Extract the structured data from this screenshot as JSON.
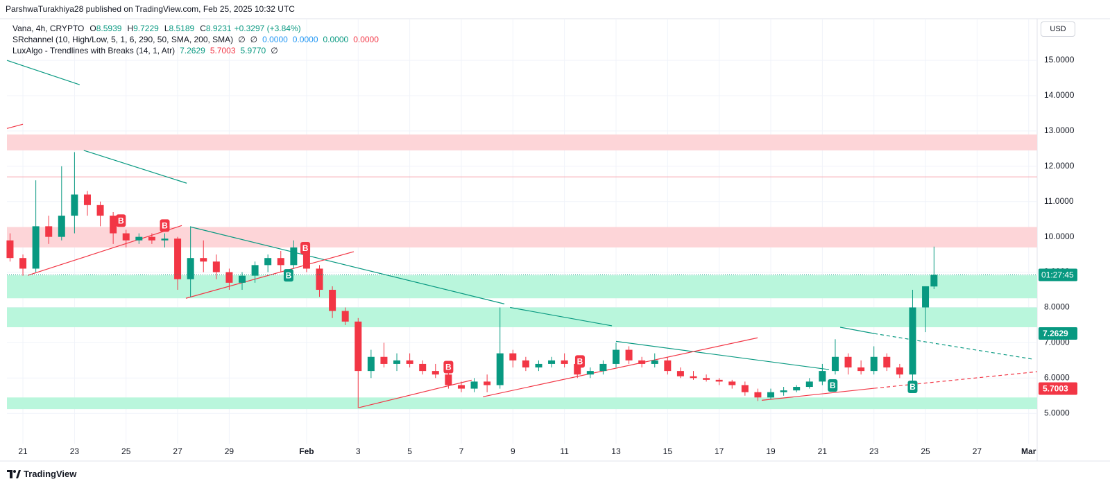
{
  "header": "ParshwaTurakhiya28 published on TradingView.com, Feb 25, 2025 10:32 UTC",
  "footer": "TradingView",
  "chart_data": {
    "type": "candlestick",
    "title": "Vana, 4h, CRYPTO",
    "currency": "USD",
    "ohlc_labels": [
      "O",
      "H",
      "L",
      "C"
    ],
    "change": "+0.3297 (+3.84%)",
    "indicators": [
      {
        "name": "SRchannel (10, High/Low, 5, 1, 6, 290, 50, SMA, 200, SMA)",
        "items": [
          {
            "text": "∅",
            "color": "#131722"
          },
          {
            "text": "∅",
            "color": "#131722"
          },
          {
            "text": "0.0000",
            "color": "#2196f3"
          },
          {
            "text": "0.0000",
            "color": "#2196f3"
          },
          {
            "text": "0.0000",
            "color": "#089981"
          },
          {
            "text": "0.0000",
            "color": "#f23645"
          }
        ]
      },
      {
        "name": "LuxAlgo - Trendlines with Breaks (14, 1, Atr)",
        "items": [
          {
            "text": "7.2629",
            "color": "#089981"
          },
          {
            "text": "5.7003",
            "color": "#f23645"
          },
          {
            "text": "5.9770",
            "color": "#089981"
          },
          {
            "text": "∅",
            "color": "#131722"
          }
        ]
      }
    ],
    "up_color": "#089981",
    "down_color": "#f23645",
    "x": [
      -0.5,
      0,
      0.5,
      1,
      1.5,
      2,
      2.5,
      3,
      3.5,
      4,
      4.5,
      5,
      5.5,
      6,
      6.5,
      7,
      7.5,
      8,
      8.5,
      9,
      9.5,
      10,
      10.5,
      11,
      11.5,
      12,
      12.5,
      13,
      13.5,
      14,
      14.5,
      15,
      15.5,
      16,
      16.5,
      17,
      17.5,
      18,
      18.5,
      19,
      19.5,
      20,
      20.5,
      21,
      21.5,
      22,
      22.5,
      23,
      23.5,
      24,
      24.5,
      25,
      25.5,
      26,
      26.5,
      27,
      27.5,
      28,
      28.5,
      29,
      29.5,
      30,
      30.5,
      31,
      31.5,
      32,
      32.5,
      33,
      33.5,
      34,
      34.5,
      35,
      35.33
    ],
    "open": [
      9.9,
      9.4,
      9.1,
      10.3,
      10.0,
      10.6,
      11.2,
      10.9,
      10.6,
      10.1,
      9.9,
      10.0,
      9.9,
      9.95,
      8.8,
      9.4,
      9.3,
      9.0,
      8.7,
      8.9,
      9.2,
      9.4,
      9.2,
      9.7,
      9.1,
      8.5,
      7.9,
      7.6,
      6.2,
      6.6,
      6.4,
      6.5,
      6.4,
      6.2,
      6.1,
      5.8,
      5.7,
      5.9,
      5.8,
      6.7,
      6.5,
      6.3,
      6.4,
      6.5,
      6.4,
      6.1,
      6.2,
      6.4,
      6.8,
      6.5,
      6.4,
      6.5,
      6.2,
      6.05,
      6.0,
      5.95,
      5.9,
      5.8,
      5.6,
      5.45,
      5.6,
      5.65,
      5.75,
      5.9,
      6.2,
      6.6,
      6.3,
      6.2,
      6.6,
      6.3,
      6.1,
      8.0,
      8.5939
    ],
    "high": [
      10.1,
      9.5,
      11.6,
      10.6,
      12.0,
      12.4,
      11.3,
      11.0,
      10.7,
      10.2,
      10.1,
      10.1,
      10.1,
      10.0,
      10.3,
      9.9,
      9.5,
      9.1,
      9.0,
      9.3,
      9.5,
      9.6,
      9.9,
      9.8,
      9.2,
      8.6,
      8.0,
      7.7,
      6.8,
      7.0,
      6.7,
      6.7,
      6.5,
      6.4,
      6.2,
      5.9,
      6.0,
      6.1,
      8.0,
      6.8,
      6.6,
      6.5,
      6.6,
      6.7,
      6.5,
      6.3,
      6.5,
      7.0,
      6.9,
      6.6,
      6.7,
      6.6,
      6.3,
      6.2,
      6.1,
      6.0,
      5.95,
      5.9,
      5.7,
      5.7,
      5.75,
      5.8,
      6.0,
      6.4,
      7.1,
      6.7,
      6.5,
      6.9,
      6.7,
      6.4,
      8.5,
      8.6,
      9.7229
    ],
    "low": [
      9.3,
      8.9,
      9.0,
      9.8,
      9.9,
      10.1,
      10.6,
      10.3,
      9.8,
      9.7,
      9.8,
      9.8,
      9.7,
      8.5,
      8.3,
      9.0,
      8.8,
      8.5,
      8.5,
      8.7,
      9.0,
      9.0,
      9.1,
      9.0,
      8.3,
      7.7,
      7.5,
      5.15,
      6.0,
      6.3,
      6.2,
      6.3,
      6.1,
      6.0,
      5.7,
      5.6,
      5.6,
      5.6,
      5.7,
      6.3,
      6.2,
      6.2,
      6.3,
      6.3,
      6.0,
      6.0,
      6.1,
      6.3,
      6.4,
      6.3,
      6.3,
      6.1,
      6.0,
      5.95,
      5.9,
      5.8,
      5.7,
      5.5,
      5.35,
      5.4,
      5.5,
      5.6,
      5.7,
      5.8,
      6.1,
      6.1,
      6.1,
      6.1,
      6.2,
      6.0,
      5.9,
      7.3,
      8.5189
    ],
    "close": [
      9.4,
      9.1,
      10.3,
      10.0,
      10.6,
      11.2,
      10.9,
      10.6,
      10.1,
      9.9,
      10.0,
      9.9,
      9.95,
      8.8,
      9.4,
      9.3,
      9.0,
      8.7,
      8.9,
      9.2,
      9.4,
      9.2,
      9.7,
      9.1,
      8.5,
      7.9,
      7.6,
      6.2,
      6.6,
      6.4,
      6.5,
      6.4,
      6.2,
      6.1,
      5.8,
      5.7,
      5.9,
      5.8,
      6.7,
      6.5,
      6.3,
      6.4,
      6.5,
      6.4,
      6.1,
      6.2,
      6.4,
      6.8,
      6.5,
      6.4,
      6.5,
      6.2,
      6.05,
      6.0,
      5.95,
      5.9,
      5.8,
      5.6,
      5.45,
      5.6,
      5.65,
      5.75,
      5.9,
      6.2,
      6.6,
      6.3,
      6.2,
      6.6,
      6.3,
      6.1,
      8.0,
      8.6,
      8.9231
    ],
    "xlim": [
      -0.62,
      39.33
    ],
    "ylim": [
      4.14,
      16.18
    ],
    "xticks": [
      {
        "value": 0,
        "label": "21"
      },
      {
        "value": 2,
        "label": "23"
      },
      {
        "value": 4,
        "label": "25"
      },
      {
        "value": 6,
        "label": "27"
      },
      {
        "value": 8,
        "label": "29"
      },
      {
        "value": 11,
        "label": "Feb"
      },
      {
        "value": 13,
        "label": "3"
      },
      {
        "value": 15,
        "label": "5"
      },
      {
        "value": 17,
        "label": "7"
      },
      {
        "value": 19,
        "label": "9"
      },
      {
        "value": 21,
        "label": "11"
      },
      {
        "value": 23,
        "label": "13"
      },
      {
        "value": 25,
        "label": "15"
      },
      {
        "value": 27,
        "label": "17"
      },
      {
        "value": 29,
        "label": "19"
      },
      {
        "value": 31,
        "label": "21"
      },
      {
        "value": 33,
        "label": "23"
      },
      {
        "value": 35,
        "label": "25"
      },
      {
        "value": 37,
        "label": "27"
      },
      {
        "value": 39,
        "label": "Mar"
      }
    ],
    "yticks": [
      {
        "value": 5,
        "label": "5.0000"
      },
      {
        "value": 6,
        "label": "6.0000"
      },
      {
        "value": 7,
        "label": "7.0000"
      },
      {
        "value": 8,
        "label": "8.0000"
      },
      {
        "value": 9,
        "label": "9.0000"
      },
      {
        "value": 10,
        "label": "10.0000"
      },
      {
        "value": 11,
        "label": "11.0000"
      },
      {
        "value": 12,
        "label": "12.0000"
      },
      {
        "value": 13,
        "label": "13.0000"
      },
      {
        "value": 14,
        "label": "14.0000"
      },
      {
        "value": 15,
        "label": "15.0000"
      }
    ],
    "grid": true,
    "zones": [
      {
        "from": 12.45,
        "to": 12.9,
        "color": "#fdd5d8"
      },
      {
        "from": 9.7,
        "to": 10.28,
        "color": "#fdd5d8"
      },
      {
        "from": 8.26,
        "to": 8.91,
        "color": "#b9f6dc"
      },
      {
        "from": 7.44,
        "to": 8.0,
        "color": "#b9f6dc"
      },
      {
        "from": 5.12,
        "to": 5.45,
        "color": "#b9f6dc"
      }
    ],
    "levels": [
      {
        "value": 11.7,
        "color": "#f7a9b0"
      }
    ],
    "trendlines": [
      {
        "points": [
          -0.62,
          15.0,
          2.2,
          14.31
        ],
        "color": "#089981",
        "style": "solid"
      },
      {
        "points": [
          -0.62,
          13.07,
          0,
          13.19
        ],
        "color": "#f23645",
        "style": "solid"
      },
      {
        "points": [
          2.36,
          12.45,
          6.35,
          11.52
        ],
        "color": "#089981",
        "style": "solid"
      },
      {
        "points": [
          6.51,
          10.28,
          18.67,
          8.1
        ],
        "color": "#089981",
        "style": "solid"
      },
      {
        "points": [
          18.89,
          8.0,
          22.84,
          7.48
        ],
        "color": "#089981",
        "style": "solid"
      },
      {
        "points": [
          23.0,
          7.04,
          31.26,
          6.24
        ],
        "color": "#089981",
        "style": "solid"
      },
      {
        "points": [
          31.69,
          7.44,
          33.01,
          7.26
        ],
        "color": "#089981",
        "style": "solid"
      },
      {
        "points": [
          33.01,
          7.26,
          39.2,
          6.53
        ],
        "color": "#089981",
        "style": "dashed"
      },
      {
        "points": [
          0.19,
          8.91,
          6.16,
          10.32
        ],
        "color": "#f23645",
        "style": "solid"
      },
      {
        "points": [
          6.32,
          8.26,
          12.83,
          9.58
        ],
        "color": "#f23645",
        "style": "solid"
      },
      {
        "points": [
          13.02,
          5.16,
          17.4,
          5.94
        ],
        "color": "#f23645",
        "style": "solid"
      },
      {
        "points": [
          17.84,
          5.47,
          28.49,
          7.14
        ],
        "color": "#f23645",
        "style": "solid"
      },
      {
        "points": [
          28.65,
          5.37,
          33.01,
          5.71
        ],
        "color": "#f23645",
        "style": "solid"
      },
      {
        "points": [
          33.01,
          5.71,
          39.33,
          6.18
        ],
        "color": "#f23645",
        "style": "dashed"
      }
    ],
    "breaks": [
      {
        "label": "B",
        "x": 3.8,
        "value": 10.46,
        "color": "#f23645"
      },
      {
        "label": "B",
        "x": 5.5,
        "value": 10.32,
        "color": "#f23645"
      },
      {
        "label": "B",
        "x": 10.3,
        "value": 8.91,
        "color": "#089981"
      },
      {
        "label": "B",
        "x": 10.95,
        "value": 9.68,
        "color": "#f23645"
      },
      {
        "label": "B",
        "x": 16.5,
        "value": 6.31,
        "color": "#f23645"
      },
      {
        "label": "B",
        "x": 21.6,
        "value": 6.47,
        "color": "#f23645"
      },
      {
        "label": "B",
        "x": 31.4,
        "value": 5.79,
        "color": "#089981"
      },
      {
        "label": "B",
        "x": 34.5,
        "value": 5.75,
        "color": "#089981"
      }
    ],
    "price_tags": [
      {
        "value": 7.2629,
        "color": "#089981"
      },
      {
        "value": 5.7003,
        "color": "#f23645"
      }
    ],
    "countdown": "01:27:45"
  }
}
